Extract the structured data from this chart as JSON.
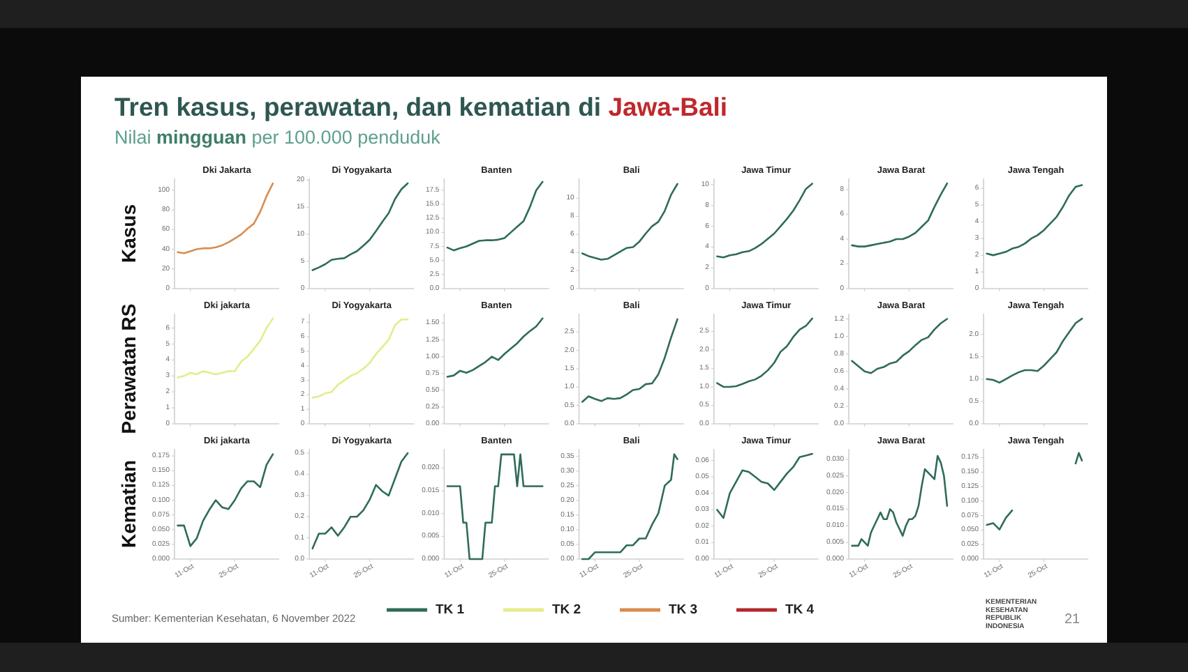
{
  "chart_data": [
    {
      "type": "other",
      "title": "Tren kasus, perawatan, dan kematian di Jawa-Bali",
      "subtitle": "Nilai mingguan per 100.000 penduduk",
      "legend": "bottom",
      "series": [
        {
          "name": "TK 1",
          "color": "#2f6b5b"
        },
        {
          "name": "TK 2",
          "color": "#e4ec8a"
        },
        {
          "name": "TK 3",
          "color": "#d98c4e"
        },
        {
          "name": "TK 4",
          "color": "#b3262b"
        }
      ],
      "annotations": [
        "Sumber: Kementerian Kesehatan, 6 November 2022",
        "21",
        "KEMENTERIAN KESEHATAN REPUBLIK INDONESIA"
      ]
    },
    {
      "type": "line",
      "title": "Dki Jakarta",
      "ylabel": "Kasus",
      "x": [
        "--10-07",
        "--10-09",
        "--10-11",
        "--10-13",
        "--10-15",
        "--10-17",
        "--10-19",
        "--10-21",
        "--10-23",
        "--10-25",
        "--10-27",
        "--10-29",
        "--10-31",
        "--11-02",
        "--11-04",
        "--11-06"
      ],
      "series": [
        {
          "color": "#d98c4e",
          "values": [
            37,
            36,
            38,
            40,
            41,
            41,
            42,
            44,
            47,
            51,
            55,
            61,
            66,
            78,
            94,
            107
          ]
        }
      ],
      "xlim": [
        "--10-06",
        "--11-08"
      ],
      "xticks": [
        {
          "value": "--10-11",
          "label": null
        },
        {
          "value": "--10-25",
          "label": null
        }
      ],
      "ylim": [
        0,
        112
      ],
      "yticks": [
        0,
        20,
        40,
        60,
        80,
        100
      ],
      "tick_labels": "y"
    },
    {
      "type": "line",
      "title": "Di Yogyakarta",
      "x": [
        "--10-07",
        "--10-09",
        "--10-11",
        "--10-13",
        "--10-15",
        "--10-17",
        "--10-19",
        "--10-21",
        "--10-23",
        "--10-25",
        "--10-27",
        "--10-29",
        "--10-31",
        "--11-02",
        "--11-04",
        "--11-06"
      ],
      "series": [
        {
          "color": "#2f6b5b",
          "values": [
            3.4,
            3.9,
            4.5,
            5.3,
            5.5,
            5.6,
            6.3,
            6.9,
            7.9,
            9.0,
            10.6,
            12.3,
            13.9,
            16.5,
            18.3,
            19.4
          ]
        }
      ],
      "xlim": [
        "--10-06",
        "--11-08"
      ],
      "xticks": [
        {
          "value": "--10-11",
          "label": null
        },
        {
          "value": "--10-25",
          "label": null
        }
      ],
      "ylim": [
        0,
        20.3
      ],
      "yticks": [
        0,
        5,
        10,
        15,
        20
      ],
      "tick_labels": "y"
    },
    {
      "type": "line",
      "title": "Banten",
      "x": [
        "--10-07",
        "--10-09",
        "--10-11",
        "--10-13",
        "--10-15",
        "--10-17",
        "--10-19",
        "--10-21",
        "--10-23",
        "--10-25",
        "--10-27",
        "--10-29",
        "--10-31",
        "--11-02",
        "--11-04",
        "--11-06"
      ],
      "series": [
        {
          "color": "#2f6b5b",
          "values": [
            7.3,
            6.8,
            7.2,
            7.5,
            8.0,
            8.5,
            8.6,
            8.6,
            8.7,
            9.0,
            10.0,
            11.0,
            12.0,
            14.5,
            17.5,
            19.0
          ]
        }
      ],
      "xlim": [
        "--10-06",
        "--11-08"
      ],
      "xticks": [
        {
          "value": "--10-11",
          "label": null
        },
        {
          "value": "--10-25",
          "label": null
        }
      ],
      "ylim": [
        0,
        19.6
      ],
      "yticks": [
        {
          "value": 0,
          "label": "0.0"
        },
        2.5,
        {
          "value": 5,
          "label": "5.0"
        },
        7.5,
        {
          "value": 10,
          "label": "10.0"
        },
        12.5,
        {
          "value": 15,
          "label": "15.0"
        },
        17.5
      ],
      "tick_labels": "y"
    },
    {
      "type": "line",
      "title": "Bali",
      "x": [
        "--10-07",
        "--10-09",
        "--10-11",
        "--10-13",
        "--10-15",
        "--10-17",
        "--10-19",
        "--10-21",
        "--10-23",
        "--10-25",
        "--10-27",
        "--10-29",
        "--10-31",
        "--11-02",
        "--11-04",
        "--11-06"
      ],
      "series": [
        {
          "color": "#2f6b5b",
          "values": [
            3.9,
            3.6,
            3.4,
            3.2,
            3.3,
            3.7,
            4.1,
            4.5,
            4.6,
            5.2,
            6.1,
            6.9,
            7.4,
            8.6,
            10.4,
            11.6
          ]
        }
      ],
      "xlim": [
        "--10-06",
        "--11-08"
      ],
      "xticks": [
        {
          "value": "--10-11",
          "label": null
        },
        {
          "value": "--10-25",
          "label": null
        }
      ],
      "ylim": [
        0,
        12.2
      ],
      "yticks": [
        0,
        2,
        4,
        6,
        8,
        10
      ],
      "tick_labels": "y"
    },
    {
      "type": "line",
      "title": "Jawa Timur",
      "x": [
        "--10-07",
        "--10-09",
        "--10-11",
        "--10-13",
        "--10-15",
        "--10-17",
        "--10-19",
        "--10-21",
        "--10-23",
        "--10-25",
        "--10-27",
        "--10-29",
        "--10-31",
        "--11-02",
        "--11-04",
        "--11-06"
      ],
      "series": [
        {
          "color": "#2f6b5b",
          "values": [
            3.1,
            3.0,
            3.2,
            3.3,
            3.5,
            3.6,
            3.9,
            4.3,
            4.8,
            5.3,
            6.0,
            6.7,
            7.5,
            8.5,
            9.6,
            10.1
          ]
        }
      ],
      "xlim": [
        "--10-06",
        "--11-08"
      ],
      "xticks": [
        {
          "value": "--10-11",
          "label": null
        },
        {
          "value": "--10-25",
          "label": null
        }
      ],
      "ylim": [
        0,
        10.6
      ],
      "yticks": [
        0,
        2,
        4,
        6,
        8,
        10
      ],
      "tick_labels": "y"
    },
    {
      "type": "line",
      "title": "Jawa Barat",
      "x": [
        "--10-07",
        "--10-09",
        "--10-11",
        "--10-13",
        "--10-15",
        "--10-17",
        "--10-19",
        "--10-21",
        "--10-23",
        "--10-25",
        "--10-27",
        "--10-29",
        "--10-31",
        "--11-02",
        "--11-04",
        "--11-06"
      ],
      "series": [
        {
          "color": "#2f6b5b",
          "values": [
            3.5,
            3.4,
            3.4,
            3.5,
            3.6,
            3.7,
            3.8,
            4.0,
            4.0,
            4.2,
            4.5,
            5.0,
            5.5,
            6.6,
            7.6,
            8.5
          ]
        }
      ],
      "xlim": [
        "--10-06",
        "--11-08"
      ],
      "xticks": [
        {
          "value": "--10-11",
          "label": null
        },
        {
          "value": "--10-25",
          "label": null
        }
      ],
      "ylim": [
        0,
        8.9
      ],
      "yticks": [
        0,
        2,
        4,
        6,
        8
      ],
      "tick_labels": "y"
    },
    {
      "type": "line",
      "title": "Jawa Tengah",
      "x": [
        "--10-07",
        "--10-09",
        "--10-11",
        "--10-13",
        "--10-15",
        "--10-17",
        "--10-19",
        "--10-21",
        "--10-23",
        "--10-25",
        "--10-27",
        "--10-29",
        "--10-31",
        "--11-02",
        "--11-04",
        "--11-06"
      ],
      "series": [
        {
          "color": "#2f6b5b",
          "values": [
            2.1,
            2.0,
            2.1,
            2.2,
            2.4,
            2.5,
            2.7,
            3.0,
            3.2,
            3.5,
            3.9,
            4.3,
            4.9,
            5.6,
            6.1,
            6.2
          ]
        }
      ],
      "xlim": [
        "--10-06",
        "--11-08"
      ],
      "xticks": [
        {
          "value": "--10-11",
          "label": null
        },
        {
          "value": "--10-25",
          "label": null
        }
      ],
      "ylim": [
        0,
        6.6
      ],
      "yticks": [
        0,
        1,
        2,
        3,
        4,
        5,
        6
      ],
      "tick_labels": "y"
    },
    {
      "type": "line",
      "title": "Dki jakarta",
      "ylabel": "Perawatan RS",
      "x": [
        "--10-07",
        "--10-09",
        "--10-11",
        "--10-13",
        "--10-15",
        "--10-17",
        "--10-19",
        "--10-21",
        "--10-23",
        "--10-25",
        "--10-27",
        "--10-29",
        "--10-31",
        "--11-02",
        "--11-04",
        "--11-06"
      ],
      "series": [
        {
          "color": "#e4ec8a",
          "values": [
            2.9,
            3.0,
            3.2,
            3.1,
            3.3,
            3.2,
            3.1,
            3.2,
            3.3,
            3.3,
            3.9,
            4.2,
            4.7,
            5.2,
            6.0,
            6.6
          ]
        }
      ],
      "xlim": [
        "--10-06",
        "--11-08"
      ],
      "xticks": [
        {
          "value": "--10-11",
          "label": null
        },
        {
          "value": "--10-25",
          "label": null
        }
      ],
      "ylim": [
        0,
        6.9
      ],
      "yticks": [
        0,
        1,
        2,
        3,
        4,
        5,
        6
      ],
      "tick_labels": "y"
    },
    {
      "type": "line",
      "title": "Di Yogyakarta",
      "x": [
        "--10-07",
        "--10-09",
        "--10-11",
        "--10-13",
        "--10-15",
        "--10-17",
        "--10-19",
        "--10-21",
        "--10-23",
        "--10-25",
        "--10-27",
        "--10-29",
        "--10-31",
        "--11-02",
        "--11-04",
        "--11-06"
      ],
      "series": [
        {
          "color": "#e4ec8a",
          "values": [
            1.8,
            1.9,
            2.1,
            2.2,
            2.7,
            3.0,
            3.3,
            3.5,
            3.8,
            4.2,
            4.8,
            5.3,
            5.8,
            6.8,
            7.2,
            7.2
          ]
        }
      ],
      "xlim": [
        "--10-06",
        "--11-08"
      ],
      "xticks": [
        {
          "value": "--10-11",
          "label": null
        },
        {
          "value": "--10-25",
          "label": null
        }
      ],
      "ylim": [
        0,
        7.6
      ],
      "yticks": [
        0,
        1,
        2,
        3,
        4,
        5,
        6,
        7
      ],
      "tick_labels": "y"
    },
    {
      "type": "line",
      "title": "Banten",
      "x": [
        "--10-07",
        "--10-09",
        "--10-11",
        "--10-13",
        "--10-15",
        "--10-17",
        "--10-19",
        "--10-21",
        "--10-23",
        "--10-25",
        "--10-27",
        "--10-29",
        "--10-31",
        "--11-02",
        "--11-04",
        "--11-06"
      ],
      "series": [
        {
          "color": "#2f6b5b",
          "values": [
            0.7,
            0.72,
            0.79,
            0.76,
            0.8,
            0.86,
            0.92,
            1.0,
            0.95,
            1.04,
            1.12,
            1.2,
            1.3,
            1.38,
            1.45,
            1.57
          ]
        }
      ],
      "xlim": [
        "--10-06",
        "--11-08"
      ],
      "xticks": [
        {
          "value": "--10-11",
          "label": null
        },
        {
          "value": "--10-25",
          "label": null
        }
      ],
      "ylim": [
        0,
        1.64
      ],
      "yticks": [
        {
          "value": 0,
          "label": "0.00"
        },
        0.25,
        {
          "value": 0.5,
          "label": "0.50"
        },
        0.75,
        {
          "value": 1,
          "label": "1.00"
        },
        1.25,
        {
          "value": 1.5,
          "label": "1.50"
        }
      ],
      "tick_labels": "y"
    },
    {
      "type": "line",
      "title": "Bali",
      "x": [
        "--10-07",
        "--10-09",
        "--10-11",
        "--10-13",
        "--10-15",
        "--10-17",
        "--10-19",
        "--10-21",
        "--10-23",
        "--10-25",
        "--10-27",
        "--10-29",
        "--10-31",
        "--11-02",
        "--11-04",
        "--11-06"
      ],
      "series": [
        {
          "color": "#2f6b5b",
          "values": [
            0.6,
            0.75,
            0.68,
            0.62,
            0.7,
            0.68,
            0.7,
            0.8,
            0.92,
            0.95,
            1.08,
            1.1,
            1.35,
            1.8,
            2.35,
            2.85
          ]
        }
      ],
      "xlim": [
        "--10-06",
        "--11-08"
      ],
      "xticks": [
        {
          "value": "--10-11",
          "label": null
        },
        {
          "value": "--10-25",
          "label": null
        }
      ],
      "ylim": [
        0,
        3.0
      ],
      "yticks": [
        {
          "value": 0,
          "label": "0.0"
        },
        0.5,
        {
          "value": 1,
          "label": "1.0"
        },
        1.5,
        {
          "value": 2,
          "label": "2.0"
        },
        2.5
      ],
      "tick_labels": "y"
    },
    {
      "type": "line",
      "title": "Jawa Timur",
      "x": [
        "--10-07",
        "--10-09",
        "--10-11",
        "--10-13",
        "--10-15",
        "--10-17",
        "--10-19",
        "--10-21",
        "--10-23",
        "--10-25",
        "--10-27",
        "--10-29",
        "--10-31",
        "--11-02",
        "--11-04",
        "--11-06"
      ],
      "series": [
        {
          "color": "#2f6b5b",
          "values": [
            1.1,
            1.0,
            1.0,
            1.02,
            1.08,
            1.15,
            1.2,
            1.3,
            1.45,
            1.65,
            1.95,
            2.1,
            2.35,
            2.55,
            2.65,
            2.85
          ]
        }
      ],
      "xlim": [
        "--10-06",
        "--11-08"
      ],
      "xticks": [
        {
          "value": "--10-11",
          "label": null
        },
        {
          "value": "--10-25",
          "label": null
        }
      ],
      "ylim": [
        0,
        2.98
      ],
      "yticks": [
        {
          "value": 0,
          "label": "0.0"
        },
        0.5,
        {
          "value": 1,
          "label": "1.0"
        },
        1.5,
        {
          "value": 2,
          "label": "2.0"
        },
        2.5
      ],
      "tick_labels": "y"
    },
    {
      "type": "line",
      "title": "Jawa Barat",
      "x": [
        "--10-07",
        "--10-09",
        "--10-11",
        "--10-13",
        "--10-15",
        "--10-17",
        "--10-19",
        "--10-21",
        "--10-23",
        "--10-25",
        "--10-27",
        "--10-29",
        "--10-31",
        "--11-02",
        "--11-04",
        "--11-06"
      ],
      "series": [
        {
          "color": "#2f6b5b",
          "values": [
            0.72,
            0.66,
            0.6,
            0.58,
            0.63,
            0.65,
            0.69,
            0.71,
            0.78,
            0.83,
            0.9,
            0.96,
            0.99,
            1.08,
            1.15,
            1.2
          ]
        }
      ],
      "xlim": [
        "--10-06",
        "--11-08"
      ],
      "xticks": [
        {
          "value": "--10-11",
          "label": null
        },
        {
          "value": "--10-25",
          "label": null
        }
      ],
      "ylim": [
        0,
        1.26
      ],
      "yticks": [
        {
          "value": 0,
          "label": "0.0"
        },
        0.2,
        0.4,
        0.6,
        0.8,
        {
          "value": 1,
          "label": "1.0"
        },
        1.2
      ],
      "tick_labels": "y"
    },
    {
      "type": "line",
      "title": "Jawa Tengah",
      "x": [
        "--10-07",
        "--10-09",
        "--10-11",
        "--10-13",
        "--10-15",
        "--10-17",
        "--10-19",
        "--10-21",
        "--10-23",
        "--10-25",
        "--10-27",
        "--10-29",
        "--10-31",
        "--11-02",
        "--11-04",
        "--11-06"
      ],
      "series": [
        {
          "color": "#2f6b5b",
          "values": [
            1.0,
            0.98,
            0.92,
            1.0,
            1.08,
            1.15,
            1.2,
            1.2,
            1.18,
            1.3,
            1.45,
            1.6,
            1.85,
            2.05,
            2.25,
            2.35
          ]
        }
      ],
      "xlim": [
        "--10-06",
        "--11-08"
      ],
      "xticks": [
        {
          "value": "--10-11",
          "label": null
        },
        {
          "value": "--10-25",
          "label": null
        }
      ],
      "ylim": [
        0,
        2.46
      ],
      "yticks": [
        {
          "value": 0,
          "label": "0.0"
        },
        0.5,
        {
          "value": 1,
          "label": "1.0"
        },
        1.5,
        {
          "value": 2,
          "label": "2.0"
        }
      ],
      "tick_labels": "y"
    },
    {
      "type": "line",
      "title": "Dki jakarta",
      "ylabel": "Kematian",
      "x": [
        "--10-07",
        "--10-09",
        "--10-11",
        "--10-13",
        "--10-15",
        "--10-17",
        "--10-19",
        "--10-21",
        "--10-23",
        "--10-25",
        "--10-27",
        "--10-29",
        "--10-31",
        "--11-02",
        "--11-04",
        "--11-06"
      ],
      "series": [
        {
          "color": "#2f6b5b",
          "values": [
            0.057,
            0.057,
            0.022,
            0.035,
            0.065,
            0.084,
            0.1,
            0.088,
            0.085,
            0.1,
            0.12,
            0.132,
            0.132,
            0.122,
            0.16,
            0.178
          ]
        }
      ],
      "xlim": [
        "--10-06",
        "--11-08"
      ],
      "xticks": [
        {
          "value": "--10-11",
          "label": "11-Oct"
        },
        {
          "value": "--10-25",
          "label": "25-Oct"
        }
      ],
      "ylim": [
        0,
        0.187
      ],
      "yticks": [
        {
          "value": 0,
          "label": "0.000"
        },
        0.025,
        {
          "value": 0.05,
          "label": "0.050"
        },
        0.075,
        {
          "value": 0.1,
          "label": "0.100"
        },
        0.125,
        {
          "value": 0.15,
          "label": "0.150"
        },
        0.175
      ]
    },
    {
      "type": "line",
      "title": "Di Yogyakarta",
      "x": [
        "--10-07",
        "--10-09",
        "--10-11",
        "--10-13",
        "--10-15",
        "--10-17",
        "--10-19",
        "--10-21",
        "--10-23",
        "--10-25",
        "--10-27",
        "--10-29",
        "--10-31",
        "--11-02",
        "--11-04",
        "--11-06"
      ],
      "series": [
        {
          "color": "#2f6b5b",
          "values": [
            0.05,
            0.12,
            0.12,
            0.15,
            0.11,
            0.15,
            0.2,
            0.2,
            0.23,
            0.28,
            0.35,
            0.32,
            0.3,
            0.38,
            0.46,
            0.5
          ]
        }
      ],
      "xlim": [
        "--10-06",
        "--11-08"
      ],
      "xticks": [
        {
          "value": "--10-11",
          "label": "11-Oct"
        },
        {
          "value": "--10-25",
          "label": "25-Oct"
        }
      ],
      "ylim": [
        0,
        0.52
      ],
      "yticks": [
        {
          "value": 0,
          "label": "0.0"
        },
        0.1,
        0.2,
        0.3,
        0.4,
        0.5
      ]
    },
    {
      "type": "line",
      "title": "Banten",
      "x": [
        "--10-07",
        "--10-08",
        "--10-09",
        "--10-10",
        "--10-11",
        "--10-12",
        "--10-13",
        "--10-14",
        "--10-15",
        "--10-16",
        "--10-17",
        "--10-18",
        "--10-19",
        "--10-20",
        "--10-21",
        "--10-22",
        "--10-23",
        "--10-24",
        "--10-25",
        "--10-26",
        "--10-27",
        "--10-28",
        "--10-29",
        "--10-30",
        "--10-31",
        "--11-01",
        "--11-02",
        "--11-03",
        "--11-04",
        "--11-05",
        "--11-06"
      ],
      "series": [
        {
          "color": "#2f6b5b",
          "values": [
            0.016,
            0.016,
            0.016,
            0.016,
            0.016,
            0.008,
            0.008,
            0,
            0,
            0,
            0,
            0,
            0.008,
            0.008,
            0.008,
            0.016,
            0.016,
            0.023,
            0.023,
            0.023,
            0.023,
            0.023,
            0.016,
            0.023,
            0.016,
            0.016,
            0.016,
            0.016,
            0.016,
            0.016,
            0.016
          ]
        }
      ],
      "xlim": [
        "--10-06",
        "--11-08"
      ],
      "xticks": [
        {
          "value": "--10-11",
          "label": "11-Oct"
        },
        {
          "value": "--10-25",
          "label": "25-Oct"
        }
      ],
      "ylim": [
        0,
        0.0242
      ],
      "yticks": [
        {
          "value": 0,
          "label": "0.000"
        },
        0.005,
        {
          "value": 0.01,
          "label": "0.010"
        },
        0.015,
        {
          "value": 0.02,
          "label": "0.020"
        }
      ]
    },
    {
      "type": "line",
      "title": "Bali",
      "x": [
        "--10-07",
        "--10-09",
        "--10-11",
        "--10-13",
        "--10-15",
        "--10-17",
        "--10-19",
        "--10-21",
        "--10-23",
        "--10-25",
        "--10-27",
        "--10-29",
        "--10-31",
        "--11-02",
        "--11-04",
        "--11-05",
        "--11-06"
      ],
      "series": [
        {
          "color": "#2f6b5b",
          "values": [
            0,
            0,
            0.023,
            0.023,
            0.023,
            0.023,
            0.023,
            0.047,
            0.047,
            0.07,
            0.07,
            0.117,
            0.156,
            0.25,
            0.27,
            0.357,
            0.34
          ]
        }
      ],
      "xlim": [
        "--10-06",
        "--11-08"
      ],
      "xticks": [
        {
          "value": "--10-11",
          "label": "11-Oct"
        },
        {
          "value": "--10-25",
          "label": "25-Oct"
        }
      ],
      "ylim": [
        0,
        0.375
      ],
      "yticks": [
        {
          "value": 0,
          "label": "0.00"
        },
        0.05,
        {
          "value": 0.1,
          "label": "0.10"
        },
        0.15,
        {
          "value": 0.2,
          "label": "0.20"
        },
        0.25,
        {
          "value": 0.3,
          "label": "0.30"
        },
        0.35
      ]
    },
    {
      "type": "line",
      "title": "Jawa Timur",
      "x": [
        "--10-07",
        "--10-09",
        "--10-11",
        "--10-13",
        "--10-15",
        "--10-17",
        "--10-19",
        "--10-21",
        "--10-23",
        "--10-25",
        "--10-27",
        "--10-29",
        "--10-31",
        "--11-02",
        "--11-04",
        "--11-06"
      ],
      "series": [
        {
          "color": "#2f6b5b",
          "values": [
            0.03,
            0.025,
            0.04,
            0.047,
            0.054,
            0.053,
            0.05,
            0.047,
            0.046,
            0.042,
            0.047,
            0.052,
            0.056,
            0.062,
            0.063,
            0.064
          ]
        }
      ],
      "xlim": [
        "--10-06",
        "--11-08"
      ],
      "xticks": [
        {
          "value": "--10-11",
          "label": "11-Oct"
        },
        {
          "value": "--10-25",
          "label": "25-Oct"
        }
      ],
      "ylim": [
        0,
        0.067
      ],
      "yticks": [
        {
          "value": 0,
          "label": "0.00"
        },
        0.01,
        0.02,
        0.03,
        0.04,
        0.05,
        0.06
      ]
    },
    {
      "type": "line",
      "title": "Jawa Barat",
      "x": [
        "--10-07",
        "--10-08",
        "--10-09",
        "--10-10",
        "--10-11",
        "--10-12",
        "--10-13",
        "--10-14",
        "--10-15",
        "--10-16",
        "--10-17",
        "--10-18",
        "--10-19",
        "--10-20",
        "--10-21",
        "--10-22",
        "--10-23",
        "--10-24",
        "--10-25",
        "--10-26",
        "--10-27",
        "--10-28",
        "--10-29",
        "--10-30",
        "--10-31",
        "--11-01",
        "--11-02",
        "--11-03",
        "--11-04",
        "--11-05",
        "--11-06"
      ],
      "series": [
        {
          "color": "#2f6b5b",
          "values": [
            0.004,
            0.004,
            0.004,
            0.006,
            0.005,
            0.004,
            0.008,
            0.01,
            0.012,
            0.014,
            0.012,
            0.012,
            0.015,
            0.014,
            0.011,
            0.009,
            0.007,
            0.01,
            0.012,
            0.012,
            0.013,
            0.016,
            0.022,
            0.027,
            0.026,
            0.025,
            0.024,
            0.031,
            0.029,
            0.025,
            0.016
          ]
        }
      ],
      "xlim": [
        "--10-06",
        "--11-08"
      ],
      "xticks": [
        {
          "value": "--10-11",
          "label": "11-Oct"
        },
        {
          "value": "--10-25",
          "label": "25-Oct"
        }
      ],
      "ylim": [
        0,
        0.0331
      ],
      "yticks": [
        {
          "value": 0,
          "label": "0.000"
        },
        0.005,
        {
          "value": 0.01,
          "label": "0.010"
        },
        0.015,
        {
          "value": 0.02,
          "label": "0.020"
        },
        0.025,
        {
          "value": 0.03,
          "label": "0.030"
        }
      ]
    },
    {
      "type": "line",
      "title": "Jawa Tengah",
      "x": [
        "--10-07",
        "--10-09",
        "--10-11",
        "--10-13",
        "--10-15",
        "--10-17",
        "--10-19",
        "--10-21",
        "--10-23",
        "--10-25",
        "--10-27",
        "--10-29",
        "--10-31",
        "--11-02",
        "--11-04",
        "--11-05",
        "--11-06"
      ],
      "series": [
        {
          "color": "#2f6b5b",
          "values": [
            0.059,
            0.062,
            0.051,
            0.071,
            0.084,
            null,
            null,
            null,
            null,
            null,
            null,
            null,
            null,
            null,
            0.165,
            0.183,
            0.17
          ]
        }
      ],
      "xlim": [
        "--10-06",
        "--11-08"
      ],
      "xticks": [
        {
          "value": "--10-11",
          "label": "11-Oct"
        },
        {
          "value": "--10-25",
          "label": "25-Oct"
        }
      ],
      "ylim": [
        0,
        0.19
      ],
      "yticks": [
        {
          "value": 0,
          "label": "0.000"
        },
        0.025,
        {
          "value": 0.05,
          "label": "0.050"
        },
        0.075,
        {
          "value": 0.1,
          "label": "0.100"
        },
        0.125,
        {
          "value": 0.15,
          "label": "0.150"
        },
        0.175
      ]
    }
  ]
}
